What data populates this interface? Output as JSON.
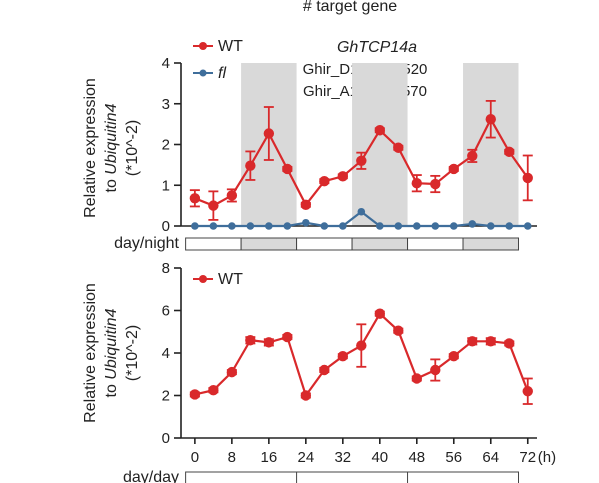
{
  "header": {
    "title": "# target gene"
  },
  "gene": {
    "name": "GhTCP14a",
    "ids": [
      "Ghir_D11G003520",
      "Ghir_A11G003570"
    ]
  },
  "chart_data": [
    {
      "type": "line",
      "x": [
        0,
        4,
        8,
        12,
        16,
        20,
        24,
        28,
        32,
        36,
        40,
        44,
        48,
        52,
        56,
        60,
        64,
        68,
        72
      ],
      "xlim": [
        -3,
        74
      ],
      "ylim": [
        0,
        4
      ],
      "yticks": [
        0,
        1,
        2,
        3,
        4
      ],
      "ylabel": [
        "Relative expression",
        "to Ubiquitin4",
        "(*10^-2)"
      ],
      "colors": [
        "#d9292b",
        "#3f6e9b"
      ],
      "shading": {
        "label": "day/night",
        "segments": [
          [
            0,
            10,
            "light"
          ],
          [
            10,
            20,
            "dark"
          ],
          [
            20,
            30,
            "light"
          ],
          [
            30,
            40,
            "dark"
          ],
          [
            40,
            50,
            "light"
          ],
          [
            50,
            60,
            "dark"
          ]
        ]
      },
      "series": [
        {
          "name": "WT",
          "values": [
            0.68,
            0.5,
            0.75,
            1.48,
            2.27,
            1.4,
            0.52,
            1.1,
            1.22,
            1.6,
            2.35,
            1.92,
            1.05,
            1.03,
            1.4,
            1.72,
            2.62,
            1.82,
            1.18
          ],
          "errors": [
            0.2,
            0.35,
            0.15,
            0.35,
            0.65,
            0.05,
            0.05,
            0.05,
            0.05,
            0.2,
            0.05,
            0.05,
            0.2,
            0.2,
            0.05,
            0.15,
            0.45,
            0.05,
            0.55
          ]
        },
        {
          "name": "fl",
          "values": [
            0,
            0,
            0,
            0,
            0,
            0,
            0.08,
            0,
            0,
            0.35,
            0,
            0,
            0,
            0,
            0,
            0.05,
            0,
            0,
            0
          ],
          "errors": [
            0,
            0,
            0,
            0,
            0,
            0,
            0,
            0,
            0,
            0,
            0,
            0,
            0,
            0,
            0,
            0,
            0,
            0,
            0
          ]
        }
      ]
    },
    {
      "type": "line",
      "x": [
        0,
        4,
        8,
        12,
        16,
        20,
        24,
        28,
        32,
        36,
        40,
        44,
        48,
        52,
        56,
        60,
        64,
        68,
        72
      ],
      "xlim": [
        -3,
        74
      ],
      "ylim": [
        0,
        8
      ],
      "yticks": [
        0,
        2,
        4,
        6,
        8
      ],
      "xticks": [
        0,
        8,
        16,
        24,
        32,
        40,
        48,
        56,
        64,
        72
      ],
      "xunit": "(h)",
      "ylabel": [
        "Relative expression",
        "to Ubiquitin4",
        "(*10^-2)"
      ],
      "colors": [
        "#d9292b"
      ],
      "shading": {
        "label": "day/day",
        "segments": [
          [
            0,
            60,
            "light"
          ]
        ]
      },
      "series": [
        {
          "name": "WT",
          "values": [
            2.05,
            2.25,
            3.1,
            4.6,
            4.5,
            4.75,
            2.0,
            3.2,
            3.85,
            4.35,
            5.85,
            5.05,
            2.8,
            3.2,
            3.85,
            4.55,
            4.55,
            4.45,
            2.2
          ],
          "errors": [
            0.1,
            0.1,
            0.1,
            0.15,
            0.15,
            0.1,
            0.1,
            0.1,
            0.1,
            1.0,
            0.1,
            0.1,
            0.1,
            0.5,
            0.1,
            0.15,
            0.15,
            0.1,
            0.6
          ]
        }
      ]
    }
  ]
}
